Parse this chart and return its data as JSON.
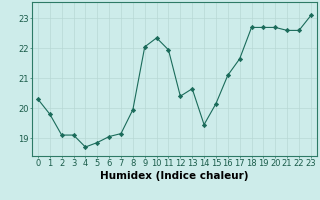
{
  "x": [
    0,
    1,
    2,
    3,
    4,
    5,
    6,
    7,
    8,
    9,
    10,
    11,
    12,
    13,
    14,
    15,
    16,
    17,
    18,
    19,
    20,
    21,
    22,
    23
  ],
  "y": [
    20.3,
    19.8,
    19.1,
    19.1,
    18.7,
    18.85,
    19.05,
    19.15,
    19.95,
    22.05,
    22.35,
    21.95,
    20.4,
    20.65,
    19.45,
    20.15,
    21.1,
    21.65,
    22.7,
    22.7,
    22.7,
    22.6,
    22.6,
    23.1
  ],
  "line_color": "#1a6b5a",
  "marker": "D",
  "marker_size": 2.2,
  "bg_color": "#cdecea",
  "grid_color": "#b8d8d5",
  "xlabel": "Humidex (Indice chaleur)",
  "ylabel_ticks": [
    19,
    20,
    21,
    22,
    23
  ],
  "xlim": [
    -0.5,
    23.5
  ],
  "ylim": [
    18.4,
    23.55
  ],
  "tick_fontsize": 6.0,
  "xlabel_fontsize": 7.5
}
